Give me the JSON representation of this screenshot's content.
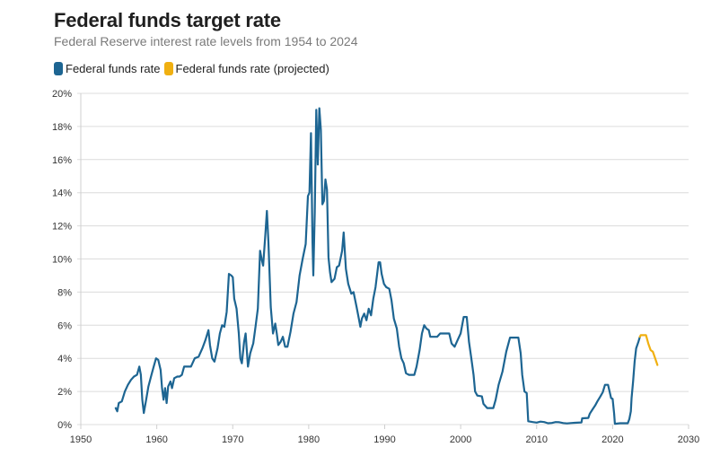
{
  "chart_data": {
    "type": "line",
    "title": "Federal funds target rate",
    "subtitle": "Federal Reserve interest rate levels from 1954 to 2024",
    "xlabel": "",
    "ylabel": "",
    "xlim": [
      1950,
      2030
    ],
    "ylim": [
      0,
      20
    ],
    "grid": true,
    "legend_position": "top-left",
    "x_ticks": [
      "1950",
      "1960",
      "1970",
      "1980",
      "1990",
      "2000",
      "2010",
      "2020",
      "2030"
    ],
    "x_tick_values": [
      1950,
      1960,
      1970,
      1980,
      1990,
      2000,
      2010,
      2020,
      2030
    ],
    "y_ticks": [
      "0%",
      "2%",
      "4%",
      "6%",
      "8%",
      "10%",
      "12%",
      "14%",
      "16%",
      "18%",
      "20%"
    ],
    "y_tick_values": [
      0,
      2,
      4,
      6,
      8,
      10,
      12,
      14,
      16,
      18,
      20
    ],
    "series": [
      {
        "name": "Federal funds rate",
        "color": "#1d6592",
        "points": [
          [
            1954.6,
            1.0
          ],
          [
            1954.8,
            0.8
          ],
          [
            1955.0,
            1.3
          ],
          [
            1955.4,
            1.4
          ],
          [
            1955.8,
            2.0
          ],
          [
            1956.2,
            2.4
          ],
          [
            1956.6,
            2.7
          ],
          [
            1957.0,
            2.9
          ],
          [
            1957.4,
            3.0
          ],
          [
            1957.7,
            3.5
          ],
          [
            1957.9,
            3.0
          ],
          [
            1958.1,
            1.5
          ],
          [
            1958.3,
            0.7
          ],
          [
            1958.6,
            1.5
          ],
          [
            1958.9,
            2.3
          ],
          [
            1959.3,
            3.0
          ],
          [
            1959.6,
            3.5
          ],
          [
            1959.9,
            4.0
          ],
          [
            1960.2,
            3.9
          ],
          [
            1960.5,
            3.3
          ],
          [
            1960.7,
            2.2
          ],
          [
            1960.9,
            1.5
          ],
          [
            1961.1,
            2.2
          ],
          [
            1961.3,
            1.3
          ],
          [
            1961.5,
            2.3
          ],
          [
            1961.8,
            2.6
          ],
          [
            1962.0,
            2.2
          ],
          [
            1962.3,
            2.8
          ],
          [
            1962.7,
            2.9
          ],
          [
            1963.0,
            2.9
          ],
          [
            1963.3,
            3.0
          ],
          [
            1963.6,
            3.5
          ],
          [
            1964.0,
            3.5
          ],
          [
            1964.5,
            3.5
          ],
          [
            1965.0,
            4.0
          ],
          [
            1965.5,
            4.1
          ],
          [
            1966.0,
            4.6
          ],
          [
            1966.4,
            5.1
          ],
          [
            1966.8,
            5.7
          ],
          [
            1967.0,
            4.8
          ],
          [
            1967.3,
            4.0
          ],
          [
            1967.6,
            3.8
          ],
          [
            1968.0,
            4.6
          ],
          [
            1968.3,
            5.5
          ],
          [
            1968.6,
            6.0
          ],
          [
            1968.9,
            5.9
          ],
          [
            1969.2,
            6.8
          ],
          [
            1969.5,
            9.1
          ],
          [
            1969.8,
            9.0
          ],
          [
            1970.0,
            8.9
          ],
          [
            1970.2,
            7.6
          ],
          [
            1970.5,
            7.0
          ],
          [
            1970.8,
            5.5
          ],
          [
            1971.0,
            4.0
          ],
          [
            1971.2,
            3.7
          ],
          [
            1971.5,
            5.0
          ],
          [
            1971.7,
            5.5
          ],
          [
            1972.0,
            3.5
          ],
          [
            1972.3,
            4.3
          ],
          [
            1972.7,
            4.9
          ],
          [
            1973.0,
            5.9
          ],
          [
            1973.3,
            7.0
          ],
          [
            1973.6,
            10.5
          ],
          [
            1973.8,
            10.0
          ],
          [
            1974.0,
            9.6
          ],
          [
            1974.3,
            11.5
          ],
          [
            1974.5,
            12.9
          ],
          [
            1974.7,
            11.0
          ],
          [
            1975.0,
            7.1
          ],
          [
            1975.3,
            5.5
          ],
          [
            1975.6,
            6.1
          ],
          [
            1975.8,
            5.5
          ],
          [
            1976.0,
            4.8
          ],
          [
            1976.3,
            5.0
          ],
          [
            1976.6,
            5.3
          ],
          [
            1976.9,
            4.7
          ],
          [
            1977.2,
            4.7
          ],
          [
            1977.6,
            5.6
          ],
          [
            1978.0,
            6.7
          ],
          [
            1978.4,
            7.4
          ],
          [
            1978.8,
            9.0
          ],
          [
            1979.2,
            10.0
          ],
          [
            1979.6,
            10.9
          ],
          [
            1979.9,
            13.8
          ],
          [
            1980.1,
            14.0
          ],
          [
            1980.3,
            17.6
          ],
          [
            1980.5,
            11.0
          ],
          [
            1980.6,
            9.0
          ],
          [
            1980.8,
            12.8
          ],
          [
            1981.0,
            19.0
          ],
          [
            1981.2,
            15.7
          ],
          [
            1981.4,
            19.1
          ],
          [
            1981.6,
            17.8
          ],
          [
            1981.8,
            13.3
          ],
          [
            1982.0,
            13.5
          ],
          [
            1982.2,
            14.8
          ],
          [
            1982.4,
            14.2
          ],
          [
            1982.6,
            10.1
          ],
          [
            1982.8,
            9.2
          ],
          [
            1983.0,
            8.6
          ],
          [
            1983.4,
            8.8
          ],
          [
            1983.7,
            9.5
          ],
          [
            1984.0,
            9.6
          ],
          [
            1984.4,
            10.5
          ],
          [
            1984.6,
            11.6
          ],
          [
            1984.9,
            9.4
          ],
          [
            1985.2,
            8.5
          ],
          [
            1985.6,
            7.9
          ],
          [
            1985.9,
            8.0
          ],
          [
            1986.3,
            7.1
          ],
          [
            1986.6,
            6.4
          ],
          [
            1986.8,
            5.9
          ],
          [
            1987.0,
            6.4
          ],
          [
            1987.3,
            6.7
          ],
          [
            1987.6,
            6.3
          ],
          [
            1987.9,
            7.0
          ],
          [
            1988.2,
            6.6
          ],
          [
            1988.5,
            7.6
          ],
          [
            1988.8,
            8.3
          ],
          [
            1989.2,
            9.8
          ],
          [
            1989.4,
            9.8
          ],
          [
            1989.6,
            9.1
          ],
          [
            1989.9,
            8.5
          ],
          [
            1990.2,
            8.3
          ],
          [
            1990.6,
            8.2
          ],
          [
            1990.9,
            7.5
          ],
          [
            1991.2,
            6.4
          ],
          [
            1991.6,
            5.8
          ],
          [
            1991.9,
            4.7
          ],
          [
            1992.2,
            4.0
          ],
          [
            1992.5,
            3.7
          ],
          [
            1992.8,
            3.1
          ],
          [
            1993.2,
            3.0
          ],
          [
            1993.6,
            3.0
          ],
          [
            1993.9,
            3.0
          ],
          [
            1994.2,
            3.5
          ],
          [
            1994.6,
            4.5
          ],
          [
            1994.9,
            5.5
          ],
          [
            1995.2,
            6.0
          ],
          [
            1995.5,
            5.8
          ],
          [
            1995.8,
            5.7
          ],
          [
            1996.0,
            5.3
          ],
          [
            1996.5,
            5.3
          ],
          [
            1996.9,
            5.3
          ],
          [
            1997.3,
            5.5
          ],
          [
            1998.0,
            5.5
          ],
          [
            1998.5,
            5.5
          ],
          [
            1998.8,
            4.9
          ],
          [
            1999.2,
            4.7
          ],
          [
            1999.6,
            5.1
          ],
          [
            2000.0,
            5.5
          ],
          [
            2000.4,
            6.5
          ],
          [
            2000.8,
            6.5
          ],
          [
            2001.1,
            5.0
          ],
          [
            2001.4,
            4.0
          ],
          [
            2001.7,
            3.0
          ],
          [
            2001.9,
            2.0
          ],
          [
            2002.2,
            1.75
          ],
          [
            2002.8,
            1.7
          ],
          [
            2003.0,
            1.25
          ],
          [
            2003.5,
            1.0
          ],
          [
            2004.3,
            1.0
          ],
          [
            2004.6,
            1.5
          ],
          [
            2005.0,
            2.4
          ],
          [
            2005.5,
            3.2
          ],
          [
            2006.0,
            4.4
          ],
          [
            2006.5,
            5.25
          ],
          [
            2007.0,
            5.25
          ],
          [
            2007.6,
            5.25
          ],
          [
            2007.9,
            4.3
          ],
          [
            2008.1,
            3.0
          ],
          [
            2008.4,
            2.0
          ],
          [
            2008.7,
            1.9
          ],
          [
            2008.9,
            0.2
          ],
          [
            2009.5,
            0.15
          ],
          [
            2010.0,
            0.12
          ],
          [
            2010.5,
            0.18
          ],
          [
            2011.0,
            0.15
          ],
          [
            2011.5,
            0.08
          ],
          [
            2012.0,
            0.1
          ],
          [
            2012.5,
            0.15
          ],
          [
            2013.0,
            0.14
          ],
          [
            2013.5,
            0.09
          ],
          [
            2014.0,
            0.07
          ],
          [
            2014.5,
            0.09
          ],
          [
            2015.0,
            0.11
          ],
          [
            2015.9,
            0.13
          ],
          [
            2016.0,
            0.38
          ],
          [
            2016.8,
            0.4
          ],
          [
            2017.0,
            0.66
          ],
          [
            2017.4,
            0.95
          ],
          [
            2017.7,
            1.15
          ],
          [
            2018.0,
            1.4
          ],
          [
            2018.4,
            1.7
          ],
          [
            2018.7,
            1.95
          ],
          [
            2019.0,
            2.4
          ],
          [
            2019.4,
            2.4
          ],
          [
            2019.6,
            2.0
          ],
          [
            2019.8,
            1.6
          ],
          [
            2020.0,
            1.55
          ],
          [
            2020.2,
            0.65
          ],
          [
            2020.3,
            0.05
          ],
          [
            2021.0,
            0.08
          ],
          [
            2022.0,
            0.08
          ],
          [
            2022.2,
            0.33
          ],
          [
            2022.4,
            0.8
          ],
          [
            2022.5,
            1.6
          ],
          [
            2022.7,
            2.6
          ],
          [
            2022.9,
            3.8
          ],
          [
            2023.1,
            4.6
          ],
          [
            2023.4,
            5.0
          ],
          [
            2023.6,
            5.3
          ]
        ]
      },
      {
        "name": "Federal funds rate (projected)",
        "color": "#f0b011",
        "points": [
          [
            2023.6,
            5.3
          ],
          [
            2023.7,
            5.4
          ],
          [
            2024.4,
            5.4
          ],
          [
            2024.7,
            4.9
          ],
          [
            2025.0,
            4.5
          ],
          [
            2025.3,
            4.4
          ],
          [
            2025.6,
            4.0
          ],
          [
            2025.9,
            3.6
          ]
        ]
      }
    ]
  }
}
